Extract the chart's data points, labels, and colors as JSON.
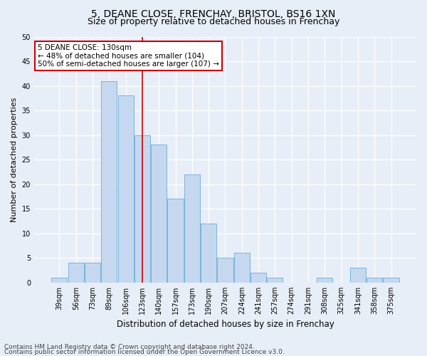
{
  "title1": "5, DEANE CLOSE, FRENCHAY, BRISTOL, BS16 1XN",
  "title2": "Size of property relative to detached houses in Frenchay",
  "xlabel": "Distribution of detached houses by size in Frenchay",
  "ylabel": "Number of detached properties",
  "categories": [
    "39sqm",
    "56sqm",
    "73sqm",
    "89sqm",
    "106sqm",
    "123sqm",
    "140sqm",
    "157sqm",
    "173sqm",
    "190sqm",
    "207sqm",
    "224sqm",
    "241sqm",
    "257sqm",
    "274sqm",
    "291sqm",
    "308sqm",
    "325sqm",
    "341sqm",
    "358sqm",
    "375sqm"
  ],
  "values": [
    1,
    4,
    4,
    41,
    38,
    30,
    28,
    17,
    22,
    12,
    5,
    6,
    2,
    1,
    0,
    0,
    1,
    0,
    3,
    1,
    1
  ],
  "bar_color": "#c5d8ef",
  "bar_edge_color": "#6aaed6",
  "highlight_index": 5,
  "annotation_text": "5 DEANE CLOSE: 130sqm\n← 48% of detached houses are smaller (104)\n50% of semi-detached houses are larger (107) →",
  "annotation_box_color": "#ffffff",
  "annotation_box_edge": "#cc0000",
  "highlight_line_color": "#cc0000",
  "ylim": [
    0,
    50
  ],
  "yticks": [
    0,
    5,
    10,
    15,
    20,
    25,
    30,
    35,
    40,
    45,
    50
  ],
  "footer1": "Contains HM Land Registry data © Crown copyright and database right 2024.",
  "footer2": "Contains public sector information licensed under the Open Government Licence v3.0.",
  "bg_color": "#e8eef8",
  "plot_bg_color": "#e8eef8",
  "title1_fontsize": 10,
  "title2_fontsize": 9,
  "xlabel_fontsize": 8.5,
  "ylabel_fontsize": 8,
  "tick_fontsize": 7,
  "footer_fontsize": 6.5,
  "ann_fontsize": 7.5
}
